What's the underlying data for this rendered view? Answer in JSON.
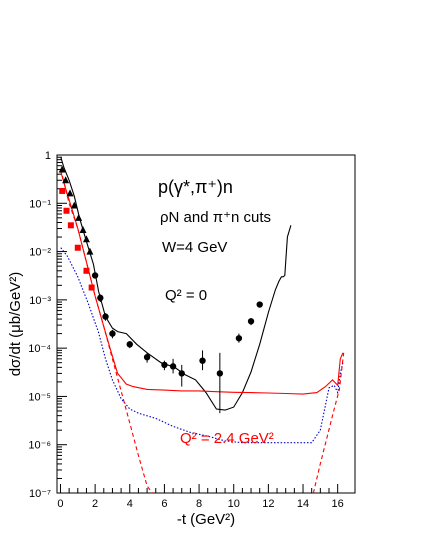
{
  "chart_data": {
    "type": "line",
    "title": "p(γ*,π⁺)n",
    "subtitle": "ρN and π⁺n cuts",
    "condition": "W=4 GeV",
    "xlabel": "-t (GeV²)",
    "ylabel": "dσ/dt (μb/GeV²)",
    "xlim": [
      -0.2,
      17.0
    ],
    "ylim": [
      1e-07,
      1
    ],
    "yscale": "log",
    "x_ticks": [
      0,
      2,
      4,
      6,
      8,
      10,
      12,
      14,
      16
    ],
    "y_ticks": [
      {
        "value": 1,
        "label": "1"
      },
      {
        "value": 0.1,
        "label": "10⁻¹"
      },
      {
        "value": 0.01,
        "label": "10⁻²"
      },
      {
        "value": 0.001,
        "label": "10⁻³"
      },
      {
        "value": 0.0001,
        "label": "10⁻⁴"
      },
      {
        "value": 1e-05,
        "label": "10⁻⁵"
      },
      {
        "value": 1e-06,
        "label": "10⁻⁶"
      },
      {
        "value": 1e-07,
        "label": "10⁻⁷"
      }
    ],
    "grid": false,
    "annotations": [
      {
        "text": "Q² = 0",
        "color": "#000000"
      },
      {
        "text": "Q² = 2.4 GeV²",
        "color": "#ff0000"
      }
    ],
    "series": [
      {
        "style": "solid",
        "color": "#000000",
        "x": [
          0.02,
          0.2,
          0.5,
          0.8,
          1.1,
          1.5,
          1.9,
          2.2,
          2.6,
          3.0,
          3.3,
          3.8,
          4.4,
          5.0,
          5.8,
          6.6,
          7.2,
          7.8,
          8.4,
          9.0,
          9.5,
          10.0,
          10.5,
          11.0,
          11.5,
          12.0,
          12.4,
          12.6,
          12.75,
          12.85,
          12.95,
          13.1,
          13.3
        ],
        "y": [
          0.9,
          0.55,
          0.3,
          0.14,
          0.05,
          0.016,
          0.0055,
          0.0015,
          0.00045,
          0.00026,
          0.00022,
          0.0002,
          0.00012,
          8e-05,
          5e-05,
          4e-05,
          2.8e-05,
          2.2e-05,
          1.2e-05,
          5.5e-06,
          5.2e-06,
          6e-06,
          1.2e-05,
          3.2e-05,
          0.00012,
          0.00055,
          0.0016,
          0.0024,
          0.003,
          0.003,
          0.0032,
          0.02,
          0.035
        ]
      },
      {
        "style": "solid",
        "color": "#ff0000",
        "x": [
          0.02,
          0.3,
          0.6,
          1.0,
          1.5,
          2.0,
          2.5,
          2.9,
          3.3,
          3.8,
          4.2,
          5.0,
          6.0,
          7.0,
          8.0,
          9.0,
          10.0,
          11.0,
          12.0,
          13.0,
          14.0,
          14.8,
          15.3,
          15.7,
          16.0,
          16.15,
          16.3
        ],
        "y": [
          0.45,
          0.2,
          0.09,
          0.03,
          0.006,
          0.0012,
          0.00028,
          9e-05,
          3e-05,
          1.8e-05,
          1.6e-05,
          1.4e-05,
          1.35e-05,
          1.3e-05,
          1.3e-05,
          1.25e-05,
          1.22e-05,
          1.2e-05,
          1.18e-05,
          1.15e-05,
          1.12e-05,
          1.2e-05,
          1.6e-05,
          2.2e-05,
          1.7e-05,
          6e-05,
          8e-05
        ]
      },
      {
        "style": "dotted",
        "color": "#0000cc",
        "x": [
          0.02,
          0.4,
          1.0,
          1.6,
          2.2,
          2.6,
          3.0,
          3.5,
          4.0,
          4.5,
          5.5,
          6.5,
          7.5,
          8.5,
          9.5,
          10.5,
          11.5,
          12.5,
          13.5,
          14.5,
          15.0,
          15.5,
          15.8,
          16.0,
          16.15,
          16.3
        ],
        "y": [
          0.012,
          0.008,
          0.003,
          0.00085,
          0.00021,
          6e-05,
          2.2e-05,
          9e-06,
          5.5e-06,
          4.5e-06,
          3.5e-06,
          2.4e-06,
          1.8e-06,
          1.5e-06,
          1.2e-06,
          1.1e-06,
          1.1e-06,
          1.1e-06,
          1.1e-06,
          1.1e-06,
          2e-06,
          1.5e-05,
          1.7e-05,
          1.2e-05,
          3e-05,
          5e-05
        ]
      },
      {
        "style": "dashed",
        "color": "#ff0000",
        "x": [
          0.02,
          0.5,
          1.0,
          1.5,
          2.0,
          2.5,
          3.0,
          3.5,
          4.0,
          4.5,
          5.0,
          5.3
        ],
        "y": [
          0.5,
          0.1,
          0.03,
          0.006,
          0.0012,
          0.00028,
          6e-05,
          1.3e-05,
          2.8e-06,
          6e-07,
          1.4e-07,
          1e-07
        ]
      },
      {
        "style": "dashed",
        "color": "#ff0000",
        "x": [
          14.6,
          15.0,
          15.4,
          15.8,
          16.1,
          16.35
        ],
        "y": [
          1e-07,
          4e-07,
          1.5e-06,
          5.5e-06,
          1.4e-05,
          8e-05
        ]
      },
      {
        "style": "points",
        "color": "#000000",
        "marker": "triangle",
        "x": [
          0.1,
          0.3,
          0.55,
          0.8,
          1.05,
          1.3,
          1.5,
          1.7
        ],
        "y": [
          0.5,
          0.3,
          0.16,
          0.09,
          0.05,
          0.028,
          0.018,
          0.01
        ]
      },
      {
        "style": "points",
        "color": "#000000",
        "marker": "circle",
        "x": [
          2.0,
          2.3,
          2.6,
          3.0,
          4.0,
          5.0,
          6.0,
          6.5,
          7.0,
          8.2,
          9.2,
          10.3,
          11.0,
          11.5
        ],
        "y": [
          0.0032,
          0.0011,
          0.00045,
          0.0002,
          0.00012,
          6.5e-05,
          4.5e-05,
          4.2e-05,
          3e-05,
          5.5e-05,
          3e-05,
          0.00016,
          0.00036,
          0.0008
        ],
        "err_lo": [
          0.0028,
          0.0009,
          0.00037,
          0.00016,
          0.0001,
          5e-05,
          3.5e-05,
          3e-05,
          1.6e-05,
          3.5e-05,
          4.5e-06,
          0.00013,
          0.0003,
          0.0008
        ],
        "err_hi": [
          0.0036,
          0.0013,
          0.00053,
          0.00024,
          0.00014,
          8e-05,
          5.5e-05,
          6e-05,
          4.5e-05,
          9e-05,
          8e-05,
          0.0002,
          0.00042,
          0.0008
        ]
      },
      {
        "style": "points",
        "color": "#ff0000",
        "marker": "square",
        "x": [
          0.1,
          0.35,
          0.6,
          1.0,
          1.5,
          1.8
        ],
        "y": [
          0.18,
          0.07,
          0.035,
          0.012,
          0.004,
          0.0018
        ]
      }
    ]
  }
}
